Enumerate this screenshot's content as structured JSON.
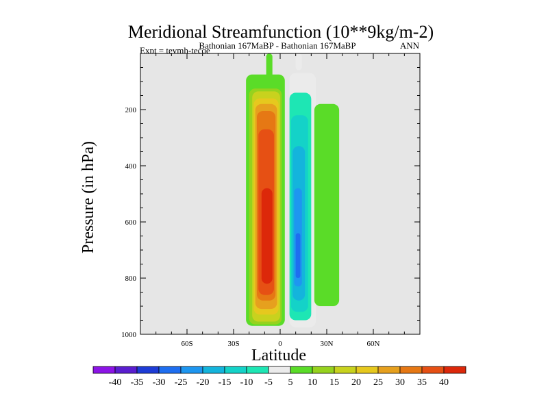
{
  "chart_data": {
    "type": "heatmap",
    "title": "Meridional Streamfunction (10**9kg/m-2)",
    "subtitle_center": "Bathonian 167MaBP - Bathonian 167MaBP",
    "subtitle_right": "ANN",
    "experiment_label": "Expt = tevmh-tecqe",
    "xlabel": "Latitude",
    "ylabel": "Pressure (in hPa)",
    "xlim": [
      -90,
      90
    ],
    "ylim": [
      1000,
      0
    ],
    "y_inverted": true,
    "x_ticks": [
      {
        "value": -60,
        "label": "60S"
      },
      {
        "value": -30,
        "label": "30S"
      },
      {
        "value": 0,
        "label": "0"
      },
      {
        "value": 30,
        "label": "30N"
      },
      {
        "value": 60,
        "label": "60N"
      }
    ],
    "y_ticks": [
      {
        "value": 200,
        "label": "200"
      },
      {
        "value": 400,
        "label": "400"
      },
      {
        "value": 600,
        "label": "600"
      },
      {
        "value": 800,
        "label": "800"
      },
      {
        "value": 1000,
        "label": "1000"
      }
    ],
    "background_color": "#e6e6e6",
    "cells": [
      {
        "lat": [
          -22,
          3
        ],
        "p": [
          75,
          970
        ],
        "level": 5
      },
      {
        "lat": [
          -20,
          1
        ],
        "p": [
          125,
          965
        ],
        "level": 10
      },
      {
        "lat": [
          -18,
          0
        ],
        "p": [
          135,
          955
        ],
        "level": 15
      },
      {
        "lat": [
          -17,
          -1
        ],
        "p": [
          160,
          930
        ],
        "level": 20
      },
      {
        "lat": [
          -16,
          -2
        ],
        "p": [
          180,
          910
        ],
        "level": 25
      },
      {
        "lat": [
          -15,
          -3
        ],
        "p": [
          205,
          880
        ],
        "level": 30
      },
      {
        "lat": [
          -14,
          -4
        ],
        "p": [
          270,
          860
        ],
        "level": 35
      },
      {
        "lat": [
          -12,
          -5
        ],
        "p": [
          480,
          820
        ],
        "level": 40
      },
      {
        "lat": [
          -9,
          -5
        ],
        "p": [
          0,
          90
        ],
        "level": 5
      },
      {
        "lat": [
          10,
          14
        ],
        "p": [
          0,
          60
        ],
        "level": -5
      },
      {
        "lat": [
          6,
          23
        ],
        "p": [
          70,
          975
        ],
        "level": -5
      },
      {
        "lat": [
          6,
          20
        ],
        "p": [
          140,
          950
        ],
        "level": -10
      },
      {
        "lat": [
          7,
          18
        ],
        "p": [
          220,
          920
        ],
        "level": -15
      },
      {
        "lat": [
          8,
          16
        ],
        "p": [
          330,
          880
        ],
        "level": -20
      },
      {
        "lat": [
          9,
          14
        ],
        "p": [
          480,
          830
        ],
        "level": -25
      },
      {
        "lat": [
          10,
          13
        ],
        "p": [
          640,
          800
        ],
        "level": -30
      },
      {
        "lat": [
          22,
          38
        ],
        "p": [
          180,
          900
        ],
        "level": 5
      }
    ],
    "colorbar": {
      "labels": [
        "-40",
        "-35",
        "-30",
        "-25",
        "-20",
        "-15",
        "-10",
        "-5",
        "5",
        "10",
        "15",
        "20",
        "25",
        "30",
        "35",
        "40"
      ],
      "colors": [
        "#8c14e6",
        "#5a1ecf",
        "#1e3cd6",
        "#1e6ef0",
        "#1e96f0",
        "#14b4dc",
        "#14d2c8",
        "#1ee6b4",
        "#ebebeb",
        "#5adc28",
        "#96d21e",
        "#c8d21e",
        "#e6c81e",
        "#e6a01e",
        "#e67814",
        "#e65014",
        "#dc280a"
      ],
      "levels": [
        -45,
        -40,
        -35,
        -30,
        -25,
        -20,
        -15,
        -10,
        -5,
        5,
        10,
        15,
        20,
        25,
        30,
        35,
        40
      ]
    }
  }
}
